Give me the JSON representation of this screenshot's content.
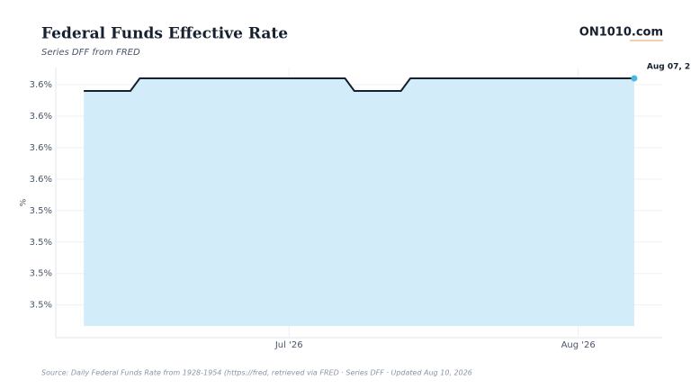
{
  "chart_data": {
    "type": "area",
    "title": "Federal Funds Effective Rate",
    "subtitle": "Series DFF from FRED",
    "brand": "ON1010.com",
    "ylabel": "%",
    "source": "Source:  Daily Federal Funds Rate from 1928-1954 (https://fred, retrieved via FRED · Series DFF · Updated Aug 10, 2026",
    "annotation": "Aug 07, 2",
    "x": [
      "2026-06-09",
      "2026-06-10",
      "2026-06-11",
      "2026-06-12",
      "2026-06-13",
      "2026-06-14",
      "2026-06-15",
      "2026-06-16",
      "2026-06-17",
      "2026-06-18",
      "2026-06-19",
      "2026-06-20",
      "2026-06-21",
      "2026-06-22",
      "2026-06-23",
      "2026-06-24",
      "2026-06-25",
      "2026-06-26",
      "2026-06-27",
      "2026-06-28",
      "2026-06-29",
      "2026-06-30",
      "2026-07-01",
      "2026-07-02",
      "2026-07-03",
      "2026-07-04",
      "2026-07-05",
      "2026-07-06",
      "2026-07-07",
      "2026-07-08",
      "2026-07-09",
      "2026-07-10",
      "2026-07-11",
      "2026-07-12",
      "2026-07-13",
      "2026-07-14",
      "2026-07-15",
      "2026-07-16",
      "2026-07-17",
      "2026-07-18",
      "2026-07-19",
      "2026-07-20",
      "2026-07-21",
      "2026-07-22",
      "2026-07-23",
      "2026-07-24",
      "2026-07-25",
      "2026-07-26",
      "2026-07-27",
      "2026-07-28",
      "2026-07-29",
      "2026-07-30",
      "2026-07-31",
      "2026-08-01",
      "2026-08-02",
      "2026-08-03",
      "2026-08-04",
      "2026-08-05",
      "2026-08-06",
      "2026-08-07"
    ],
    "series": [
      {
        "name": "DFF",
        "color": "#17202f",
        "fill": "#cdeaf9",
        "marker_color": "#4bb8e0",
        "values": [
          3.63,
          3.63,
          3.63,
          3.63,
          3.63,
          3.63,
          3.64,
          3.64,
          3.64,
          3.64,
          3.64,
          3.64,
          3.64,
          3.64,
          3.64,
          3.64,
          3.64,
          3.64,
          3.64,
          3.64,
          3.64,
          3.64,
          3.64,
          3.64,
          3.64,
          3.64,
          3.64,
          3.64,
          3.64,
          3.63,
          3.63,
          3.63,
          3.63,
          3.63,
          3.63,
          3.64,
          3.64,
          3.64,
          3.64,
          3.64,
          3.64,
          3.64,
          3.64,
          3.64,
          3.64,
          3.64,
          3.64,
          3.64,
          3.64,
          3.64,
          3.64,
          3.64,
          3.64,
          3.64,
          3.64,
          3.64,
          3.64,
          3.64,
          3.64,
          3.64
        ]
      }
    ],
    "xlim": [
      "2026-06-06",
      "2026-08-10"
    ],
    "xticks": [
      {
        "value": "2026-07-01",
        "label": "Jul '26"
      },
      {
        "value": "2026-08-01",
        "label": "Aug '26"
      }
    ],
    "ylim": [
      3.434,
      3.6486
    ],
    "yticks": [
      {
        "value": 3.635,
        "label": "3.6%"
      },
      {
        "value": 3.61,
        "label": "3.6%"
      },
      {
        "value": 3.585,
        "label": "3.6%"
      },
      {
        "value": 3.56,
        "label": "3.6%"
      },
      {
        "value": 3.535,
        "label": "3.5%"
      },
      {
        "value": 3.51,
        "label": "3.5%"
      },
      {
        "value": 3.485,
        "label": "3.5%"
      },
      {
        "value": 3.46,
        "label": "3.5%"
      }
    ],
    "grid": true
  }
}
